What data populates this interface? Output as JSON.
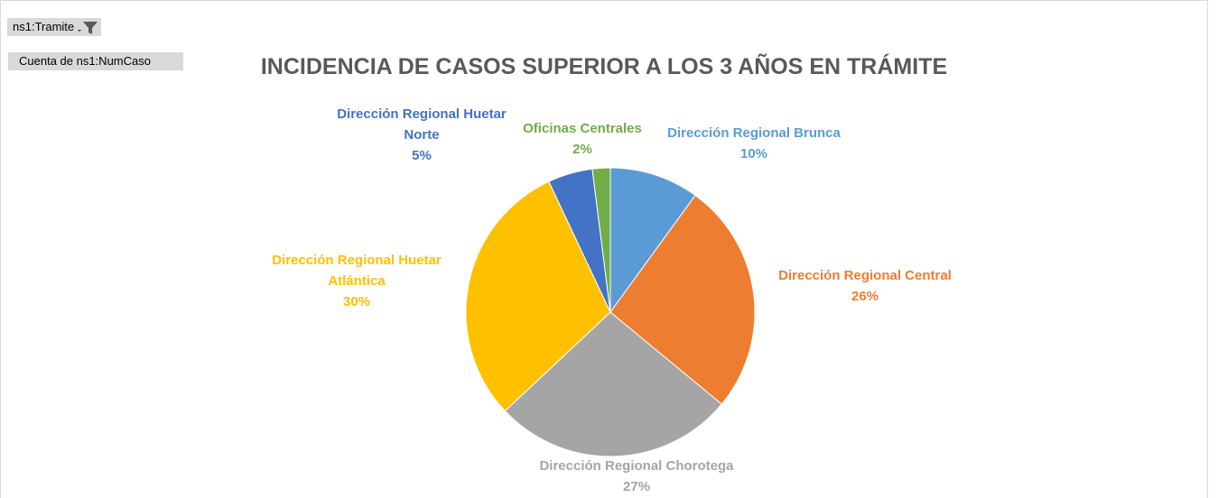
{
  "pivot_buttons": {
    "filter_field": "ns1:Tramite",
    "value_field": "Cuenta de ns1:NumCaso"
  },
  "chart_data": {
    "type": "pie",
    "title": "INCIDENCIA DE CASOS SUPERIOR A LOS 3 AÑOS EN TRÁMITE",
    "categories": [
      "Dirección Regional Brunca",
      "Dirección Regional Central",
      "Dirección Regional Chorotega",
      "Dirección Regional Huetar Atlántica",
      "Dirección Regional Huetar Norte",
      "Oficinas Centrales"
    ],
    "values": [
      10,
      26,
      27,
      30,
      5,
      2
    ],
    "value_labels": [
      "10%",
      "26%",
      "27%",
      "30%",
      "5%",
      "2%"
    ],
    "colors": [
      "#5b9bd5",
      "#ed7d31",
      "#a5a5a5",
      "#ffc000",
      "#4472c4",
      "#70ad47"
    ]
  }
}
